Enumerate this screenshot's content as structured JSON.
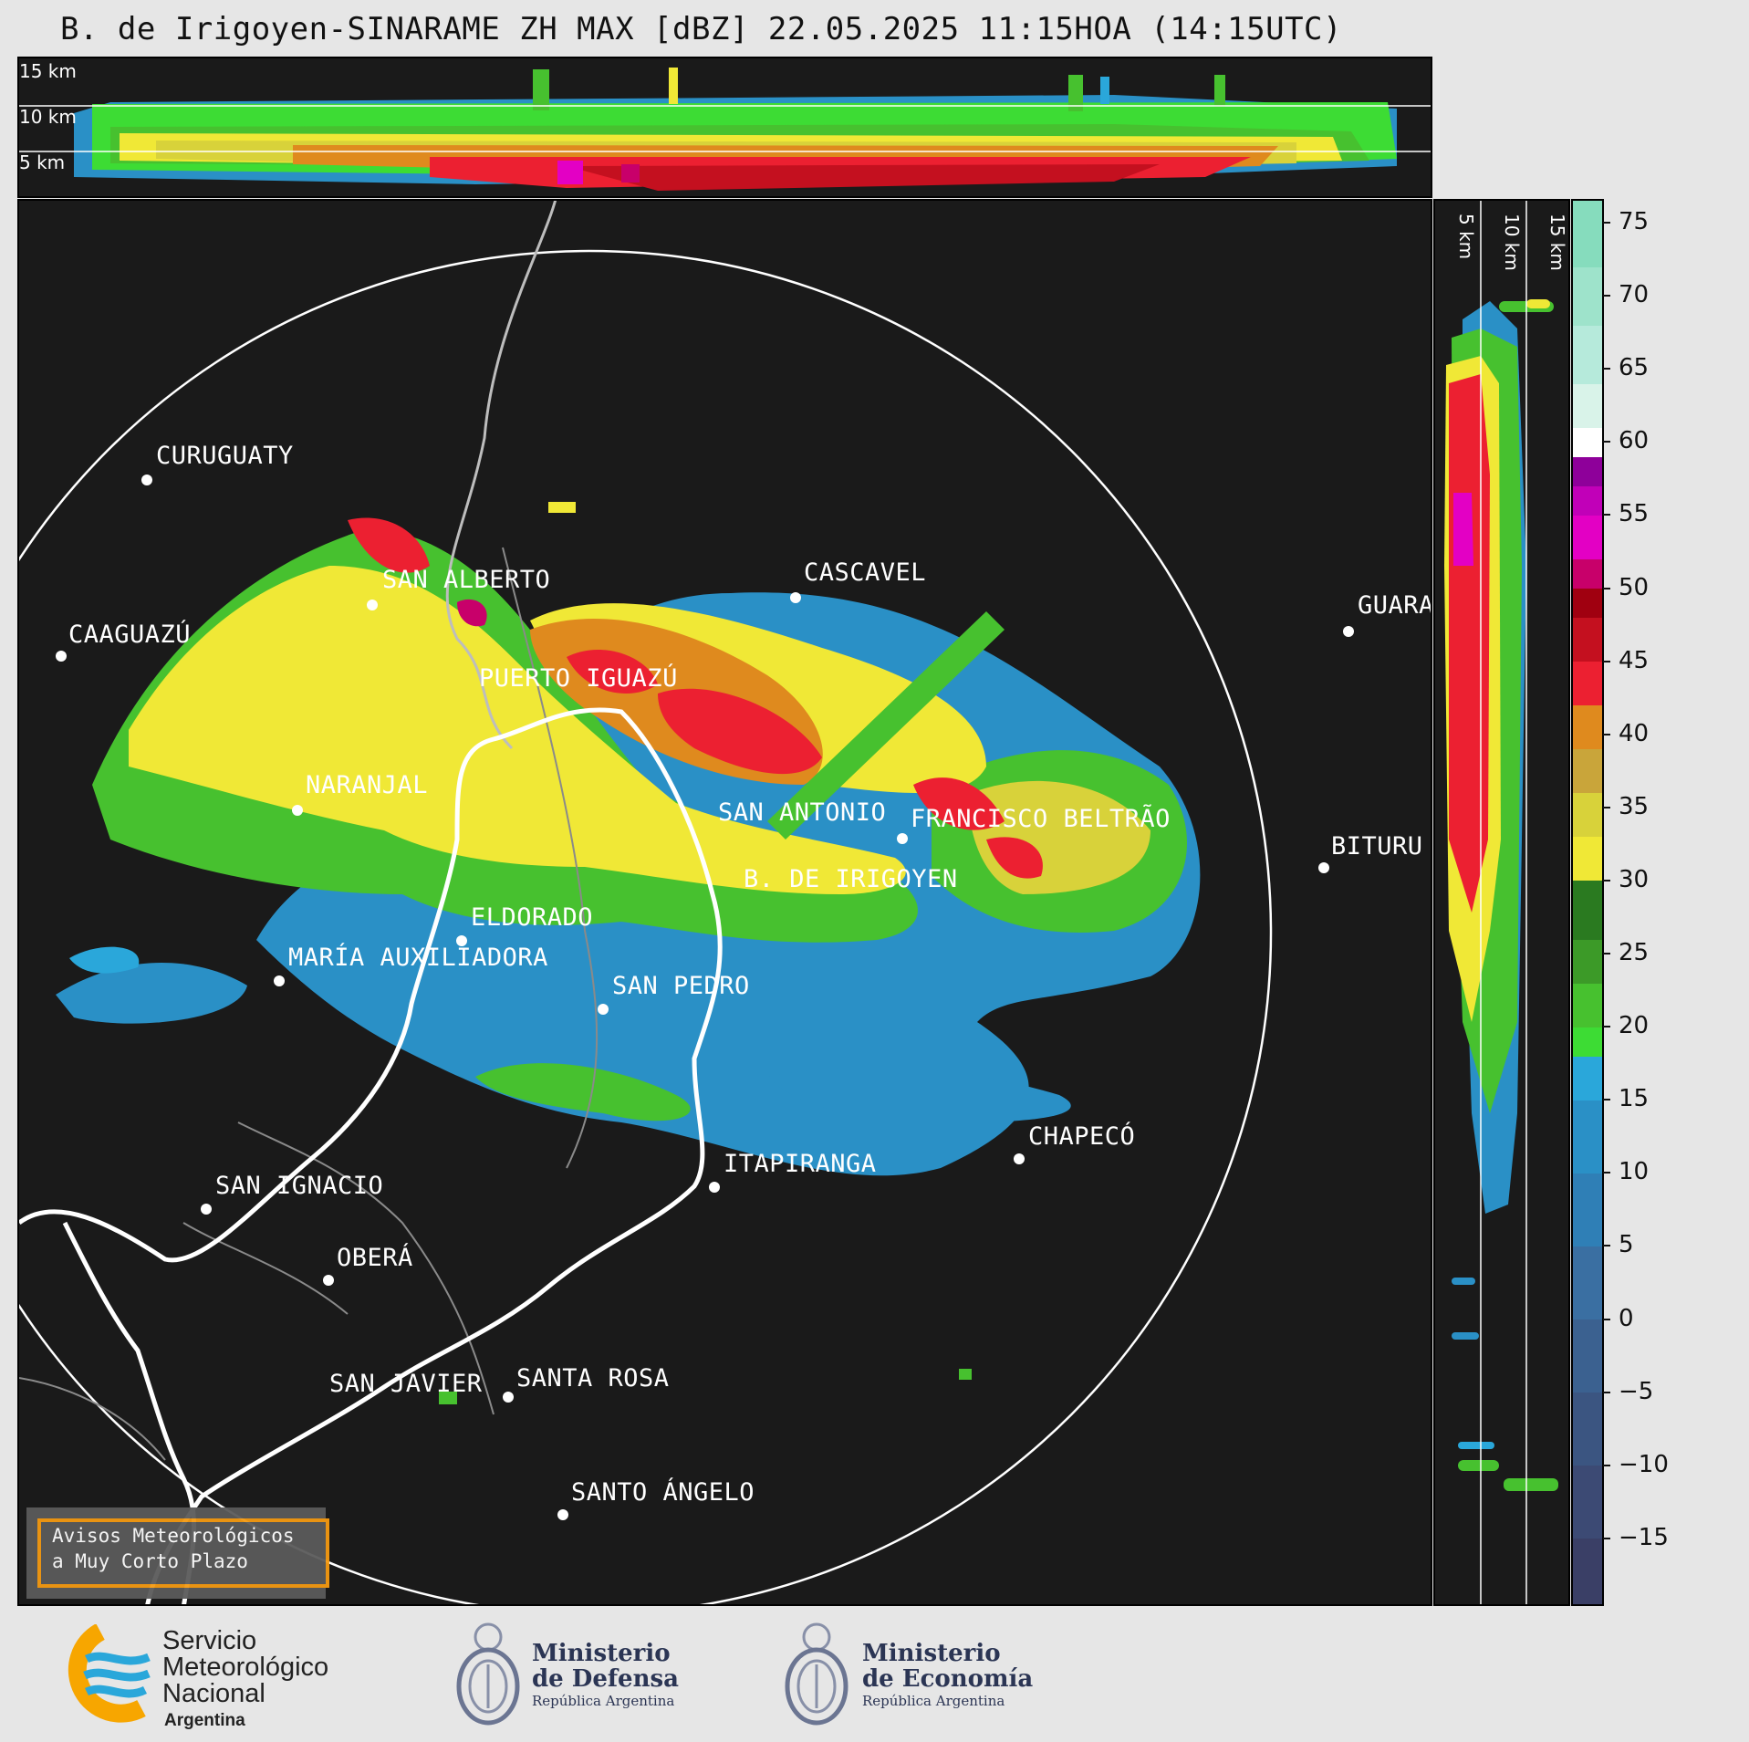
{
  "title": "B. de Irigoyen-SINARAME ZH MAX [dBZ] 22.05.2025 11:15HOA (14:15UTC)",
  "top_panel": {
    "altitude_labels": [
      "15 km",
      "10 km",
      "5 km"
    ]
  },
  "side_panel": {
    "altitude_labels": [
      "5 km",
      "10 km",
      "15 km"
    ]
  },
  "colorbar": {
    "unit": "dBZ",
    "ticks": [
      "75",
      "70",
      "65",
      "60",
      "55",
      "50",
      "45",
      "40",
      "35",
      "30",
      "25",
      "20",
      "15",
      "10",
      "5",
      "0",
      "−5",
      "−10",
      "−15"
    ],
    "range": [
      -19.5,
      76.5
    ],
    "segments": [
      {
        "from": -19.5,
        "to": -15,
        "color": "#3a3f66"
      },
      {
        "from": -15,
        "to": -10,
        "color": "#3c4a74"
      },
      {
        "from": -10,
        "to": -5,
        "color": "#3b5581"
      },
      {
        "from": -5,
        "to": 0,
        "color": "#3b6190"
      },
      {
        "from": 0,
        "to": 5,
        "color": "#3a6fa2"
      },
      {
        "from": 5,
        "to": 10,
        "color": "#2f7fb6"
      },
      {
        "from": 10,
        "to": 15,
        "color": "#2a90c6"
      },
      {
        "from": 15,
        "to": 18,
        "color": "#2aa7da"
      },
      {
        "from": 18,
        "to": 20,
        "color": "#3ddc34"
      },
      {
        "from": 20,
        "to": 23,
        "color": "#47c12f"
      },
      {
        "from": 23,
        "to": 26,
        "color": "#3c9a28"
      },
      {
        "from": 26,
        "to": 30,
        "color": "#2a7a20"
      },
      {
        "from": 30,
        "to": 33,
        "color": "#f0e836"
      },
      {
        "from": 33,
        "to": 36,
        "color": "#d8d23a"
      },
      {
        "from": 36,
        "to": 39,
        "color": "#c9a53a"
      },
      {
        "from": 39,
        "to": 42,
        "color": "#df8a1e"
      },
      {
        "from": 42,
        "to": 45,
        "color": "#ec2031"
      },
      {
        "from": 45,
        "to": 48,
        "color": "#c4101f"
      },
      {
        "from": 48,
        "to": 50,
        "color": "#a00010"
      },
      {
        "from": 50,
        "to": 52,
        "color": "#c8006a"
      },
      {
        "from": 52,
        "to": 55,
        "color": "#e300c4"
      },
      {
        "from": 55,
        "to": 57,
        "color": "#c100b8"
      },
      {
        "from": 57,
        "to": 59,
        "color": "#8e009a"
      },
      {
        "from": 59,
        "to": 61,
        "color": "#ffffff"
      },
      {
        "from": 61,
        "to": 64,
        "color": "#d9f3e9"
      },
      {
        "from": 64,
        "to": 68,
        "color": "#b6eadb"
      },
      {
        "from": 68,
        "to": 72,
        "color": "#9ee3cb"
      },
      {
        "from": 72,
        "to": 76.5,
        "color": "#86dcbd"
      }
    ]
  },
  "cities": [
    {
      "name": "CURUGUATY"
    },
    {
      "name": "SAN ALBERTO"
    },
    {
      "name": "CASCAVEL"
    },
    {
      "name": "CAAGUAZÚ"
    },
    {
      "name": "GUARA"
    },
    {
      "name": "PUERTO IGUAZÚ"
    },
    {
      "name": "NARANJAL"
    },
    {
      "name": "SAN ANTONIO"
    },
    {
      "name": "FRANCISCO BELTRÃO"
    },
    {
      "name": "BITURU"
    },
    {
      "name": "B. DE IRIGOYEN"
    },
    {
      "name": "ELDORADO"
    },
    {
      "name": "MARÍA AUXILIADORA"
    },
    {
      "name": "SAN PEDRO"
    },
    {
      "name": "ITAPIRANGA"
    },
    {
      "name": "CHAPECÓ"
    },
    {
      "name": "SAN IGNACIO"
    },
    {
      "name": "OBERÁ"
    },
    {
      "name": "SAN JAVIER"
    },
    {
      "name": "SANTA ROSA"
    },
    {
      "name": "SANTO ÁNGELO"
    }
  ],
  "warning_box": {
    "line1": "Avisos Meteorológicos",
    "line2": "a Muy Corto Plazo"
  },
  "footer": {
    "smn": {
      "line1": "Servicio",
      "line2": "Meteorológico",
      "line3": "Nacional",
      "line4": "Argentina"
    },
    "defensa": {
      "line1": "Ministerio",
      "line2": "de Defensa",
      "line3": "República Argentina"
    },
    "economia": {
      "line1": "Ministerio",
      "line2": "de Economía",
      "line3": "República Argentina"
    }
  }
}
